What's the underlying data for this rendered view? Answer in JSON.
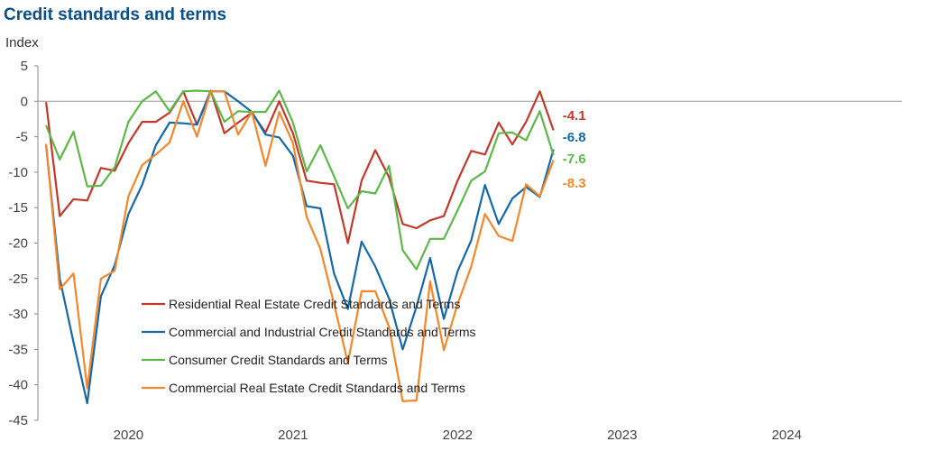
{
  "title": "Credit standards and terms",
  "chart_data": {
    "type": "line",
    "title": "Credit standards and terms",
    "ylabel": "Index",
    "xlabel": "",
    "ylim": [
      -45,
      5
    ],
    "yticks": [
      5,
      0,
      -5,
      -10,
      -15,
      -20,
      -25,
      -30,
      -35,
      -40,
      -45
    ],
    "x_start": 2019.5,
    "x_step": 0.08333,
    "xlim": [
      2019.45,
      2024.7
    ],
    "x_ticks": [
      {
        "value": 2020,
        "label": "2020"
      },
      {
        "value": 2021,
        "label": "2021"
      },
      {
        "value": 2022,
        "label": "2022"
      },
      {
        "value": 2023,
        "label": "2023"
      },
      {
        "value": 2024,
        "label": "2024"
      }
    ],
    "series": [
      {
        "name": "Residential Real Estate Credit Standards and Terms",
        "color": "#c0392b",
        "end_label": "-4.1",
        "values": [
          -0.1,
          -16.2,
          -13.8,
          -14.0,
          -9.4,
          -9.8,
          -5.9,
          -2.9,
          -2.9,
          -1.6,
          1.4,
          -3.3,
          1.5,
          -4.5,
          -3.0,
          -1.6,
          -4.4,
          0.0,
          -4.5,
          -11.2,
          -11.5,
          -11.7,
          -20.0,
          -11.2,
          -6.9,
          -10.7,
          -17.3,
          -17.9,
          -16.8,
          -16.2,
          -11.2,
          -7.0,
          -7.5,
          -3.0,
          -6.1,
          -2.9,
          1.4,
          -4.1
        ]
      },
      {
        "name": "Commercial and Industrial Credit Standards and Terms",
        "color": "#1668a9",
        "end_label": "-6.8",
        "values": [
          -6.2,
          -25.0,
          -34.0,
          -42.6,
          -27.5,
          -23.1,
          -15.9,
          -11.8,
          -6.2,
          -3.0,
          -3.1,
          -3.3,
          1.4,
          1.4,
          0.0,
          -1.5,
          -4.7,
          -5.1,
          -7.7,
          -14.8,
          -15.1,
          -24.3,
          -29.3,
          -19.8,
          -23.3,
          -27.8,
          -35.0,
          -29.0,
          -22.1,
          -30.7,
          -24.0,
          -19.6,
          -11.8,
          -17.3,
          -13.7,
          -12.1,
          -13.5,
          -6.8
        ]
      },
      {
        "name": "Consumer Credit Standards and Terms",
        "color": "#5cb848",
        "end_label": "-7.6",
        "values": [
          -3.4,
          -8.2,
          -4.3,
          -12.0,
          -11.9,
          -9.3,
          -2.9,
          0.0,
          1.4,
          -1.4,
          1.4,
          1.5,
          1.4,
          -2.9,
          -1.4,
          -1.5,
          -1.5,
          1.5,
          -3.0,
          -9.9,
          -6.2,
          -10.6,
          -15.1,
          -12.7,
          -13.0,
          -9.1,
          -21.0,
          -23.7,
          -19.4,
          -19.4,
          -15.4,
          -11.2,
          -9.9,
          -4.5,
          -4.4,
          -5.5,
          -1.4,
          -7.6
        ]
      },
      {
        "name": "Commercial Real Estate Credit Standards and Terms",
        "color": "#f2872b",
        "end_label": "-8.3",
        "values": [
          -6.0,
          -26.5,
          -24.3,
          -40.5,
          -25.0,
          -23.9,
          -13.4,
          -9.0,
          -7.5,
          -5.8,
          0.0,
          -5.0,
          1.4,
          1.4,
          -4.7,
          -1.5,
          -9.1,
          -1.5,
          -5.9,
          -16.3,
          -20.8,
          -28.6,
          -36.9,
          -26.8,
          -26.8,
          -31.8,
          -42.3,
          -42.2,
          -25.4,
          -35.1,
          -28.6,
          -23.3,
          -15.9,
          -19.0,
          -19.7,
          -11.7,
          -13.4,
          -8.3
        ]
      }
    ],
    "legend_position": "lower-left"
  }
}
